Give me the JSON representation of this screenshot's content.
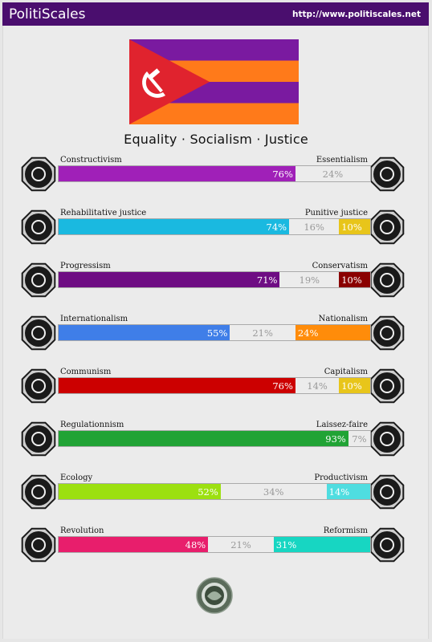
{
  "header": {
    "brand": "PolitiScales",
    "url": "http://www.politiscales.net"
  },
  "motto": "Equality · Socialism · Justice",
  "colors": {
    "header_bg": "#4a0e6e",
    "flag_purple": "#7a1aa0",
    "flag_orange": "#ff7a1a",
    "flag_red": "#e0232e"
  },
  "axes": [
    {
      "left": "Constructivism",
      "right": "Essentialism",
      "leftPct": 76,
      "midPct": 24,
      "rightPct": 0,
      "leftText": "76%",
      "midText": "24%",
      "rightText": "",
      "leftColor": "#a020b8",
      "rightColor": "#5e35b1",
      "leftIcon": "constructivism-icon",
      "rightIcon": "essentialism-icon"
    },
    {
      "left": "Rehabilitative justice",
      "right": "Punitive justice",
      "leftPct": 74,
      "midPct": 16,
      "rightPct": 10,
      "leftText": "74%",
      "midText": "16%",
      "rightText": "10%",
      "leftColor": "#1ab9e0",
      "rightColor": "#e8c51a",
      "leftIcon": "handshake-icon",
      "rightIcon": "prison-bars-icon"
    },
    {
      "left": "Progressism",
      "right": "Conservatism",
      "leftPct": 71,
      "midPct": 19,
      "rightPct": 10,
      "leftText": "71%",
      "midText": "19%",
      "rightText": "10%",
      "leftColor": "#6e0d83",
      "rightColor": "#8a0000",
      "leftIcon": "progressism-icon",
      "rightIcon": "conservatism-icon"
    },
    {
      "left": "Internationalism",
      "right": "Nationalism",
      "leftPct": 55,
      "midPct": 21,
      "rightPct": 24,
      "leftText": "55%",
      "midText": "21%",
      "rightText": "24%",
      "leftColor": "#3f7ee8",
      "rightColor": "#ff8c0a",
      "leftIcon": "globe-icon",
      "rightIcon": "flag-icon"
    },
    {
      "left": "Communism",
      "right": "Capitalism",
      "leftPct": 76,
      "midPct": 14,
      "rightPct": 10,
      "leftText": "76%",
      "midText": "14%",
      "rightText": "10%",
      "leftColor": "#cc0000",
      "rightColor": "#e8c51a",
      "leftIcon": "hammer-sickle-icon",
      "rightIcon": "money-bag-icon"
    },
    {
      "left": "Regulationnism",
      "right": "Laissez-faire",
      "leftPct": 93,
      "midPct": 7,
      "rightPct": 0,
      "leftText": "93%",
      "midText": "7%",
      "rightText": "",
      "leftColor": "#21a335",
      "rightColor": "#21a335",
      "leftIcon": "regulation-icon",
      "rightIcon": "butterfly-icon"
    },
    {
      "left": "Ecology",
      "right": "Productivism",
      "leftPct": 52,
      "midPct": 34,
      "rightPct": 14,
      "leftText": "52%",
      "midText": "34%",
      "rightText": "14%",
      "leftColor": "#9ce010",
      "rightColor": "#4fdde0",
      "leftIcon": "ecology-icon",
      "rightIcon": "factory-icon"
    },
    {
      "left": "Revolution",
      "right": "Reformism",
      "leftPct": 48,
      "midPct": 21,
      "rightPct": 31,
      "leftText": "48%",
      "midText": "21%",
      "rightText": "31%",
      "leftColor": "#e81e6c",
      "rightColor": "#17d6c2",
      "leftIcon": "revolution-icon",
      "rightIcon": "reformism-icon"
    }
  ],
  "footer": {
    "sealIcon": "seal-icon"
  }
}
